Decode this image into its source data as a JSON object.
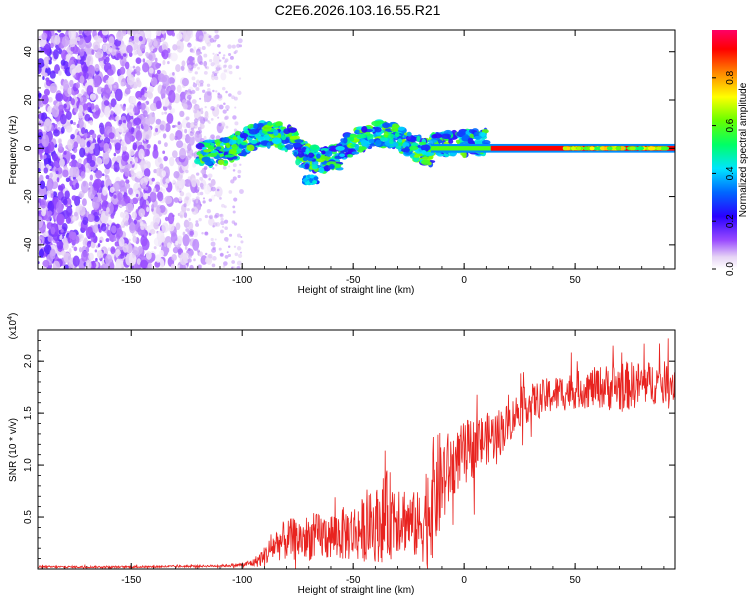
{
  "title": "C2E6.2026.103.16.55.R21",
  "chart_data": [
    {
      "type": "heatmap",
      "title": "C2E6.2026.103.16.55.R21",
      "xlabel": "Height of straight line (km)",
      "ylabel": "Frequency (Hz)",
      "xlim": [
        -192,
        95
      ],
      "ylim": [
        -50,
        49
      ],
      "xticks": [
        -150,
        -100,
        -50,
        0,
        50
      ],
      "yticks": [
        -40,
        -20,
        0,
        20,
        40
      ],
      "colorbar": {
        "label": "Normalized spectral amplitude",
        "range": [
          0.0,
          1.0
        ],
        "ticks": [
          0.0,
          0.2,
          0.4,
          0.6,
          0.8
        ],
        "tick_labels": [
          "0.0",
          "0.2",
          "0.4",
          "0.6",
          "0.8"
        ]
      },
      "features": {
        "noise_region_km": [
          -192,
          -106
        ],
        "signal_band_hz": [
          -5,
          8
        ],
        "strong_carrier_start_km": 12
      }
    },
    {
      "type": "line",
      "title": "",
      "xlabel": "Height of straight line (km)",
      "ylabel": "SNR (10 * v/v)",
      "multiplier_label": "(x10",
      "multiplier_exp": "4",
      "xlim": [
        -192,
        95
      ],
      "ylim": [
        0.0,
        2.3
      ],
      "xticks": [
        -150,
        -100,
        -50,
        0,
        50
      ],
      "yticks": [
        0.5,
        1.0,
        1.5,
        2.0
      ],
      "ytick_labels": [
        "0.5",
        "1.0",
        "1.5",
        "2.0"
      ],
      "series": [
        {
          "name": "SNR",
          "color": "#e8231f",
          "x": [
            -192,
            -150,
            -110,
            -100,
            -95,
            -90,
            -85,
            -80,
            -70,
            -60,
            -50,
            -40,
            -35,
            -30,
            -25,
            -20,
            -15,
            -10,
            -5,
            0,
            5,
            10,
            15,
            20,
            25,
            30,
            40,
            50,
            60,
            70,
            80,
            90,
            95
          ],
          "mean": [
            0.02,
            0.02,
            0.03,
            0.04,
            0.06,
            0.12,
            0.24,
            0.28,
            0.3,
            0.32,
            0.35,
            0.42,
            0.5,
            0.55,
            0.45,
            0.4,
            0.65,
            0.85,
            1.0,
            1.12,
            1.18,
            1.25,
            1.3,
            1.4,
            1.55,
            1.6,
            1.68,
            1.72,
            1.75,
            1.75,
            1.78,
            1.8,
            1.8
          ],
          "amp": [
            0.01,
            0.01,
            0.01,
            0.02,
            0.04,
            0.1,
            0.16,
            0.2,
            0.22,
            0.24,
            0.28,
            0.35,
            0.45,
            0.4,
            0.3,
            0.35,
            0.6,
            0.5,
            0.3,
            0.3,
            0.3,
            0.25,
            0.25,
            0.2,
            0.18,
            0.18,
            0.18,
            0.18,
            0.2,
            0.25,
            0.22,
            0.2,
            0.2
          ]
        }
      ]
    }
  ]
}
